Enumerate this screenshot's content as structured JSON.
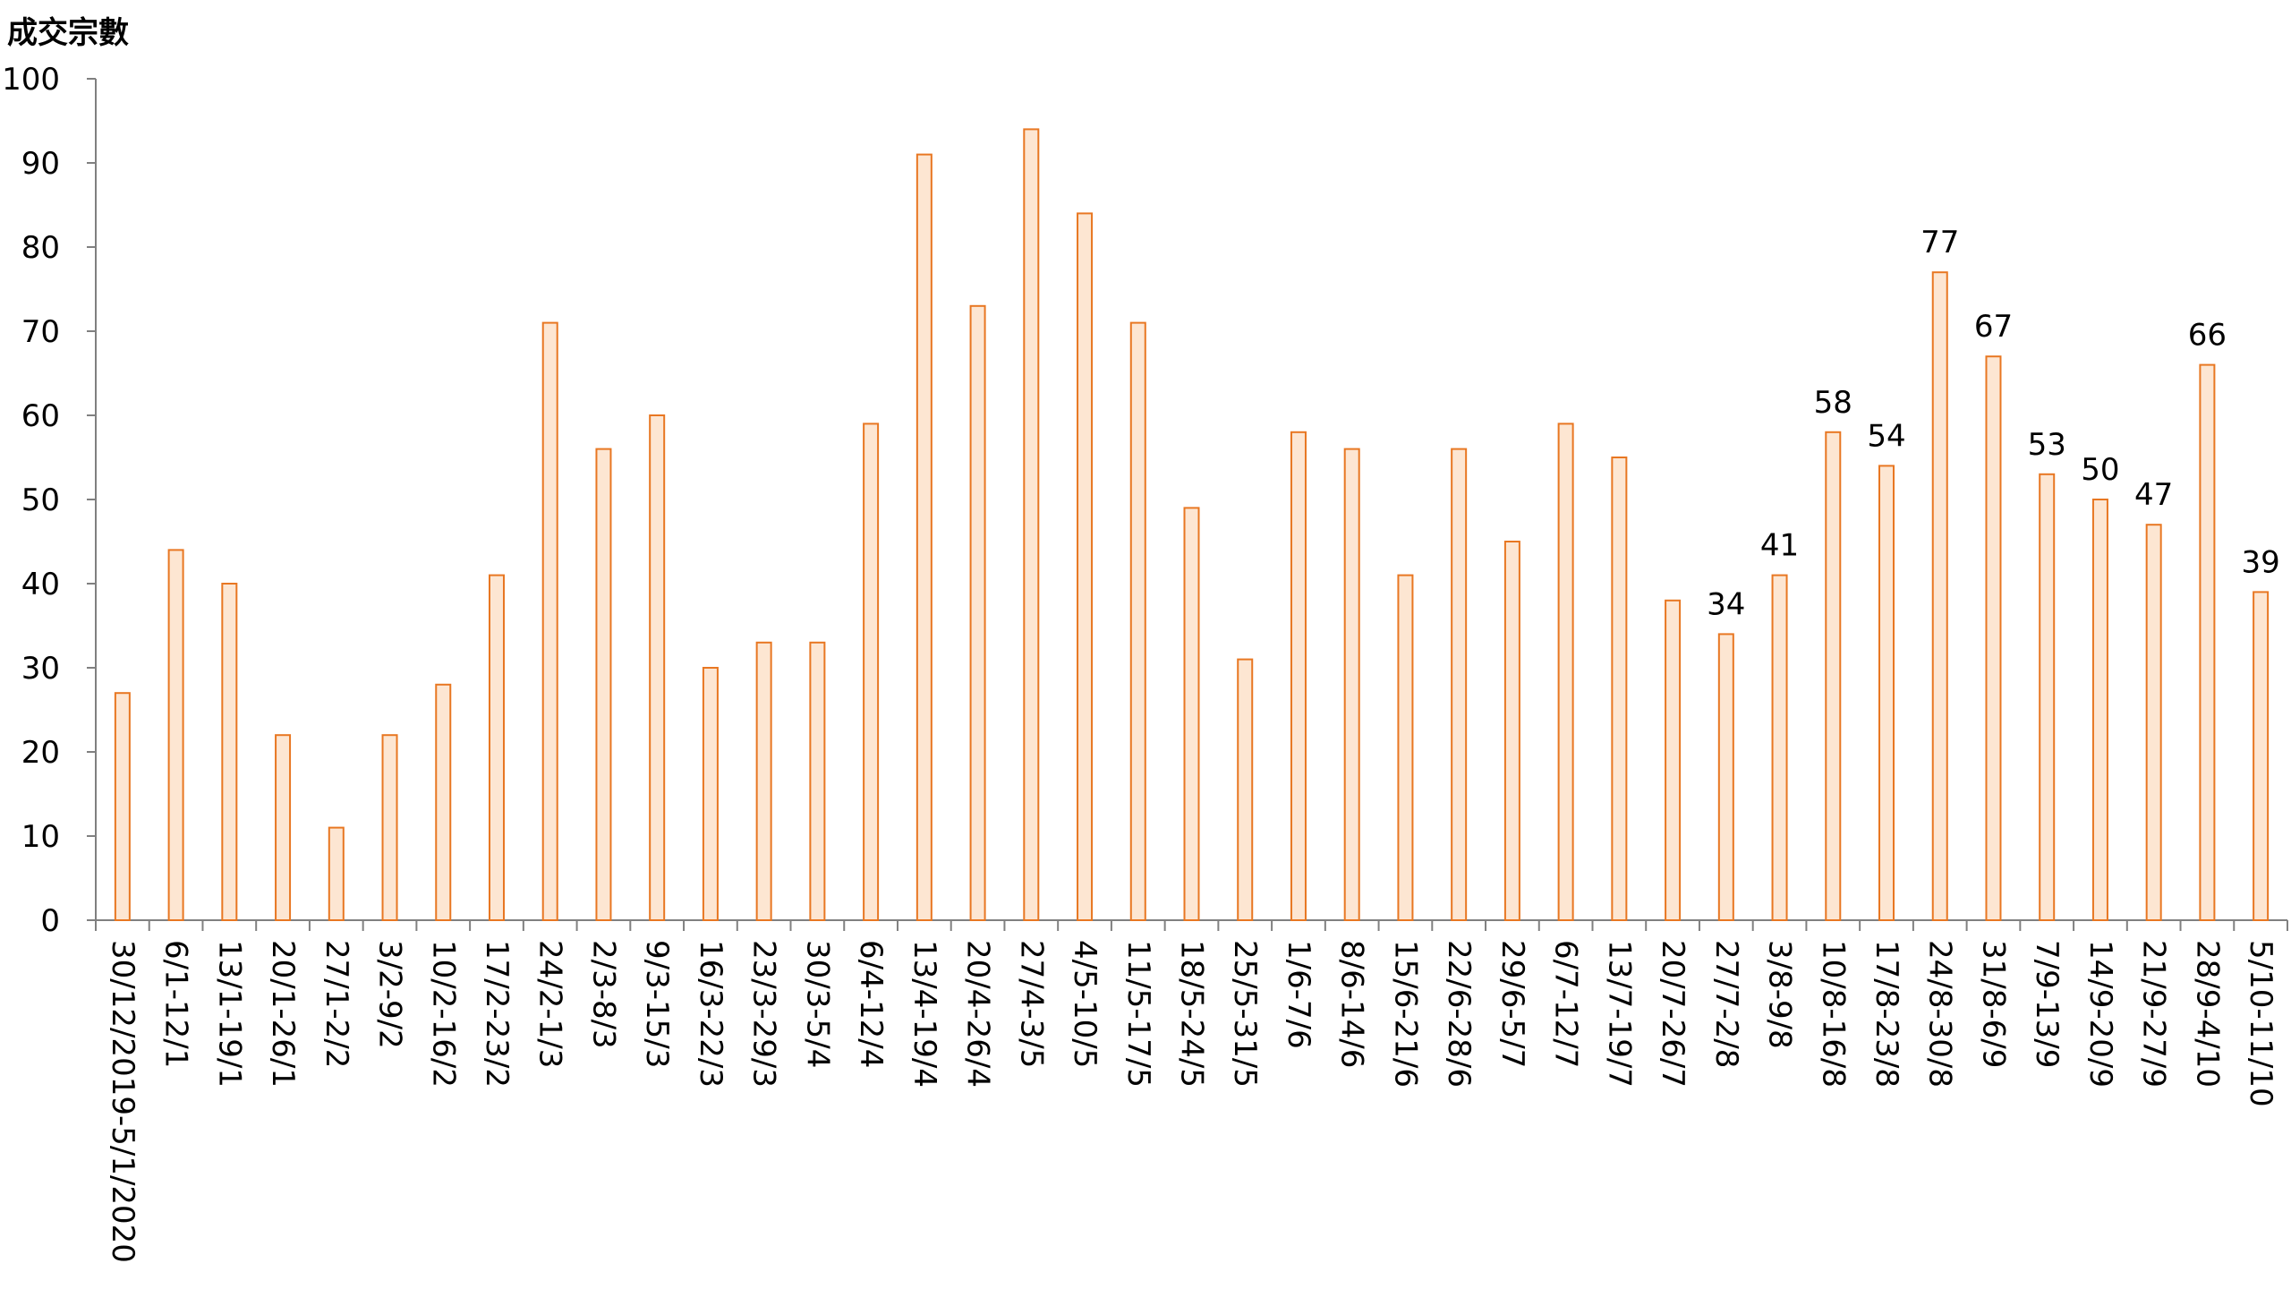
{
  "chart_data": {
    "type": "bar",
    "title": "",
    "ylabel": "成交宗數",
    "xlabel": "",
    "ylim": [
      0,
      100
    ],
    "yticks": [
      0,
      10,
      20,
      30,
      40,
      50,
      60,
      70,
      80,
      90,
      100
    ],
    "grid": false,
    "legend": "none",
    "colors": {
      "bar_fill": "#fde6d2",
      "bar_stroke": "#e87722",
      "axis": "#808080"
    },
    "categories": [
      "30/12/2019-5/1/2020",
      "6/1-12/1",
      "13/1-19/1",
      "20/1-26/1",
      "27/1-2/2",
      "3/2-9/2",
      "10/2-16/2",
      "17/2-23/2",
      "24/2-1/3",
      "2/3-8/3",
      "9/3-15/3",
      "16/3-22/3",
      "23/3-29/3",
      "30/3-5/4",
      "6/4-12/4",
      "13/4-19/4",
      "20/4-26/4",
      "27/4-3/5",
      "4/5-10/5",
      "11/5-17/5",
      "18/5-24/5",
      "25/5-31/5",
      "1/6-7/6",
      "8/6-14/6",
      "15/6-21/6",
      "22/6-28/6",
      "29/6-5/7",
      "6/7-12/7",
      "13/7-19/7",
      "20/7-26/7",
      "27/7-2/8",
      "3/8-9/8",
      "10/8-16/8",
      "17/8-23/8",
      "24/8-30/8",
      "31/8-6/9",
      "7/9-13/9",
      "14/9-20/9",
      "21/9-27/9",
      "28/9-4/10",
      "5/10-11/10"
    ],
    "values": [
      27,
      44,
      40,
      22,
      11,
      22,
      28,
      41,
      71,
      56,
      60,
      30,
      33,
      33,
      59,
      91,
      73,
      94,
      84,
      71,
      49,
      31,
      58,
      56,
      41,
      56,
      45,
      59,
      55,
      38,
      34,
      41,
      58,
      54,
      77,
      67,
      53,
      50,
      47,
      66,
      39
    ],
    "data_labels": [
      "",
      "",
      "",
      "",
      "",
      "",
      "",
      "",
      "",
      "",
      "",
      "",
      "",
      "",
      "",
      "",
      "",
      "",
      "",
      "",
      "",
      "",
      "",
      "",
      "",
      "",
      "",
      "",
      "",
      "",
      "34",
      "41",
      "58",
      "54",
      "77",
      "67",
      "53",
      "50",
      "47",
      "66",
      "39"
    ]
  }
}
